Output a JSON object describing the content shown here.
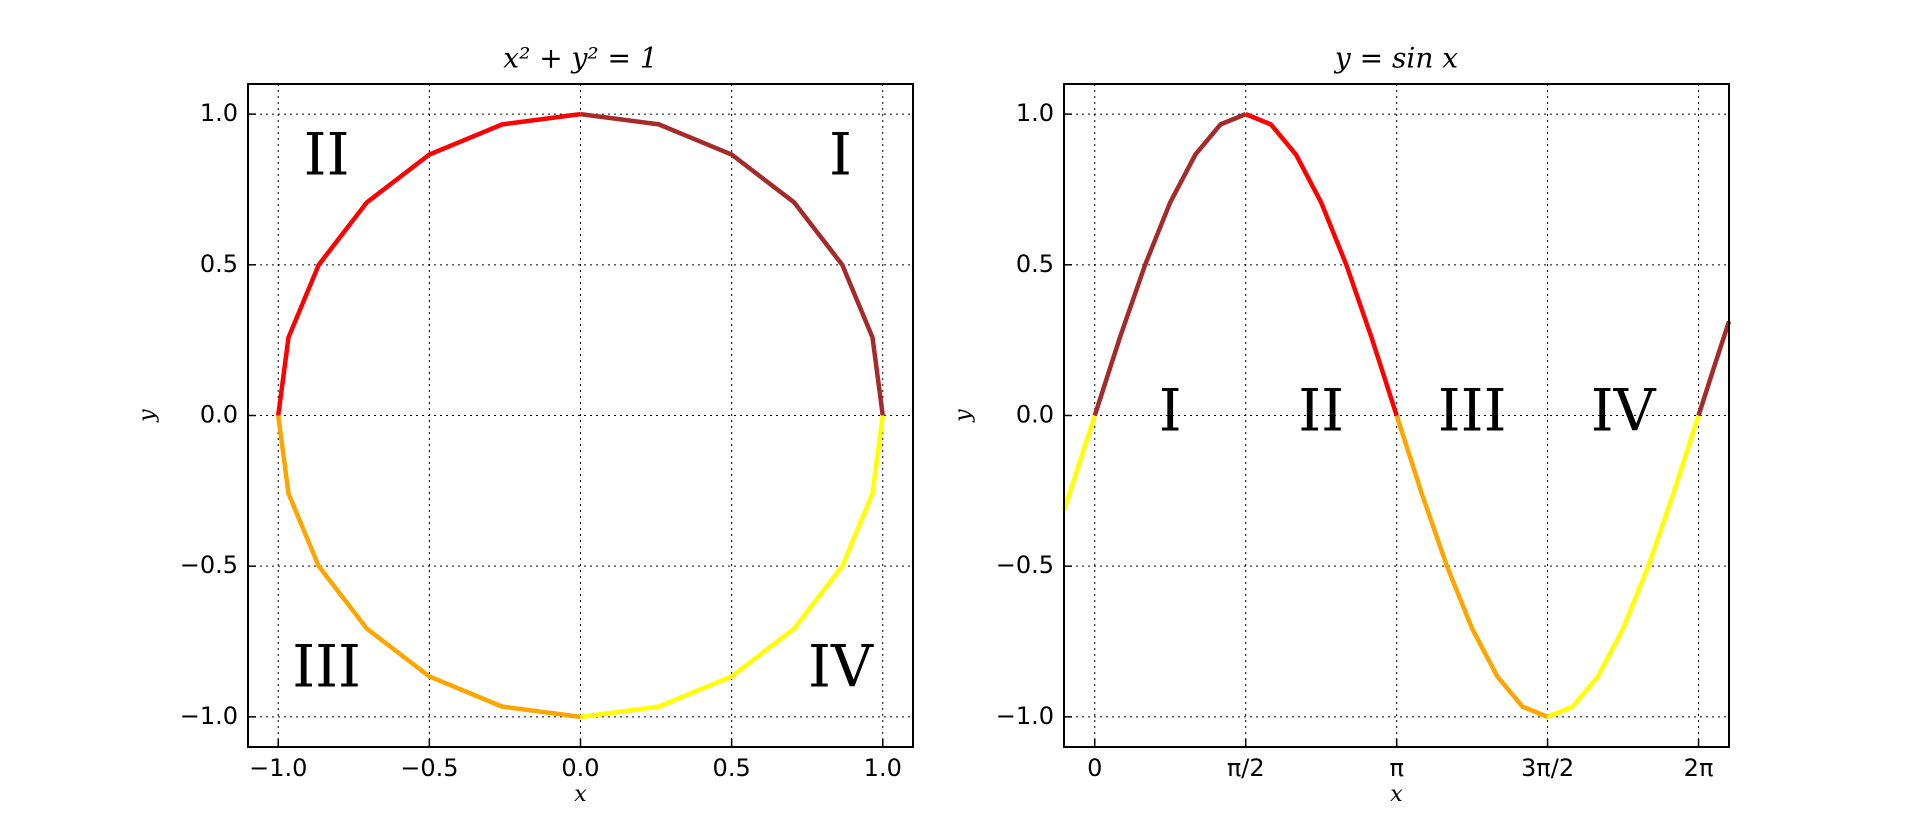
{
  "chart_data": [
    {
      "type": "line",
      "title": "x² + y² = 1",
      "x_label": "x",
      "y_label": "y",
      "xlim": [
        -1.1,
        1.1
      ],
      "ylim": [
        -1.1,
        1.1
      ],
      "xticks": [
        {
          "value": -1,
          "label": "−1.0"
        },
        {
          "value": -0.5,
          "label": "−0.5"
        },
        {
          "value": 0,
          "label": "0.0"
        },
        0.5,
        {
          "value": 1,
          "label": "1.0"
        }
      ],
      "yticks": [
        {
          "value": -1,
          "label": "−1.0"
        },
        {
          "value": -0.5,
          "label": "−0.5"
        },
        {
          "value": 0,
          "label": "0.0"
        },
        0.5,
        {
          "value": 1,
          "label": "1.0"
        }
      ],
      "grid": true,
      "annotations": [
        "II",
        "I",
        "III",
        "IV"
      ],
      "series": [
        {
          "color": "#a52a2a",
          "x": [
            1,
            0.966,
            0.866,
            0.707,
            0.5,
            0.259,
            0
          ],
          "values": [
            0,
            0.259,
            0.5,
            0.707,
            0.866,
            0.966,
            1
          ]
        },
        {
          "color": "#ff0000",
          "x": [
            0,
            -0.259,
            -0.5,
            -0.707,
            -0.866,
            -0.966,
            -1
          ],
          "values": [
            1,
            0.966,
            0.866,
            0.707,
            0.5,
            0.259,
            0
          ]
        },
        {
          "color": "#ffa500",
          "x": [
            -1,
            -0.966,
            -0.866,
            -0.707,
            -0.5,
            -0.259,
            0
          ],
          "values": [
            0,
            -0.259,
            -0.5,
            -0.707,
            -0.866,
            -0.966,
            -1
          ]
        },
        {
          "color": "#ffff00",
          "x": [
            0,
            0.259,
            0.5,
            0.707,
            0.866,
            0.966,
            1
          ],
          "values": [
            -1,
            -0.966,
            -0.866,
            -0.707,
            -0.5,
            -0.259,
            0
          ]
        }
      ]
    },
    {
      "type": "line",
      "title": "y = sin x",
      "x_label": "x",
      "y_label": "y",
      "xlim": [
        -0.32,
        6.6
      ],
      "ylim": [
        -1.1,
        1.1
      ],
      "xticks": [
        0,
        {
          "value": 1.571,
          "label": "π/2"
        },
        {
          "value": 3.142,
          "label": "π"
        },
        {
          "value": 4.712,
          "label": "3π/2"
        },
        {
          "value": 6.283,
          "label": "2π"
        }
      ],
      "yticks": [
        {
          "value": -1,
          "label": "−1.0"
        },
        {
          "value": -0.5,
          "label": "−0.5"
        },
        {
          "value": 0,
          "label": "0.0"
        },
        0.5,
        {
          "value": 1,
          "label": "1.0"
        }
      ],
      "grid": true,
      "annotations": [
        "I",
        "II",
        "III",
        "IV"
      ],
      "series": [
        {
          "color": "#ffff00",
          "x": [
            -0.32,
            -0.16,
            0
          ],
          "values": [
            -0.315,
            -0.159,
            0
          ]
        },
        {
          "color": "#a52a2a",
          "x": [
            0,
            0.262,
            0.524,
            0.785,
            1.047,
            1.309,
            1.571
          ],
          "values": [
            0,
            0.259,
            0.5,
            0.707,
            0.866,
            0.966,
            1
          ]
        },
        {
          "color": "#ff0000",
          "x": [
            1.571,
            1.833,
            2.094,
            2.356,
            2.618,
            2.88,
            3.142
          ],
          "values": [
            1,
            0.966,
            0.866,
            0.707,
            0.5,
            0.259,
            0
          ]
        },
        {
          "color": "#ffa500",
          "x": [
            3.142,
            3.403,
            3.665,
            3.927,
            4.189,
            4.451,
            4.712
          ],
          "values": [
            0,
            -0.259,
            -0.5,
            -0.707,
            -0.866,
            -0.966,
            -1
          ]
        },
        {
          "color": "#ffff00",
          "x": [
            4.712,
            4.974,
            5.236,
            5.498,
            5.76,
            6.021,
            6.283
          ],
          "values": [
            -1,
            -0.966,
            -0.866,
            -0.707,
            -0.5,
            -0.259,
            0
          ]
        },
        {
          "color": "#a52a2a",
          "x": [
            6.283,
            6.44,
            6.6
          ],
          "values": [
            0,
            0.156,
            0.312
          ]
        }
      ]
    }
  ]
}
